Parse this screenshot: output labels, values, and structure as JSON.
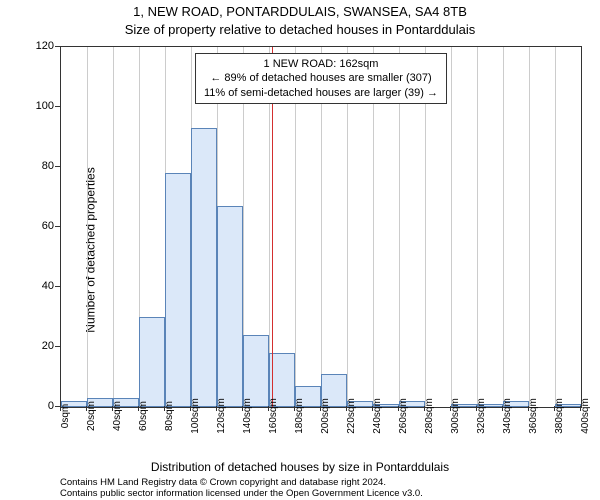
{
  "title_main": "1, NEW ROAD, PONTARDDULAIS, SWANSEA, SA4 8TB",
  "title_sub": "Size of property relative to detached houses in Pontarddulais",
  "ylabel": "Number of detached properties",
  "xlabel": "Distribution of detached houses by size in Pontarddulais",
  "footer1": "Contains HM Land Registry data © Crown copyright and database right 2024.",
  "footer2": "Contains public sector information licensed under the Open Government Licence v3.0.",
  "annotation": {
    "line1": "1 NEW ROAD: 162sqm",
    "line2": "← 89% of detached houses are smaller (307)",
    "line3": "11% of semi-detached houses are larger (39) →"
  },
  "chart": {
    "type": "histogram",
    "ylim": [
      0,
      120
    ],
    "yticks": [
      0,
      20,
      40,
      60,
      80,
      100,
      120
    ],
    "xlim": [
      0,
      400
    ],
    "xticks": [
      0,
      20,
      40,
      60,
      80,
      100,
      120,
      140,
      160,
      180,
      200,
      220,
      240,
      260,
      280,
      300,
      320,
      340,
      360,
      380,
      400
    ],
    "xtick_suffix": "sqm",
    "bin_width": 20,
    "bar_color": "#dbe8f9",
    "bar_border": "#5a84b8",
    "grid_color": "#cccccc",
    "marker_x": 162,
    "marker_color": "#d32f2f",
    "background_color": "#ffffff",
    "values": [
      {
        "x": 0,
        "count": 2
      },
      {
        "x": 20,
        "count": 3
      },
      {
        "x": 40,
        "count": 3
      },
      {
        "x": 60,
        "count": 30
      },
      {
        "x": 80,
        "count": 78
      },
      {
        "x": 100,
        "count": 93
      },
      {
        "x": 120,
        "count": 67
      },
      {
        "x": 140,
        "count": 24
      },
      {
        "x": 160,
        "count": 18
      },
      {
        "x": 180,
        "count": 7
      },
      {
        "x": 200,
        "count": 11
      },
      {
        "x": 220,
        "count": 2
      },
      {
        "x": 240,
        "count": 1
      },
      {
        "x": 260,
        "count": 2
      },
      {
        "x": 280,
        "count": 0
      },
      {
        "x": 300,
        "count": 1
      },
      {
        "x": 320,
        "count": 1
      },
      {
        "x": 340,
        "count": 2
      },
      {
        "x": 360,
        "count": 0
      },
      {
        "x": 380,
        "count": 1
      }
    ]
  }
}
